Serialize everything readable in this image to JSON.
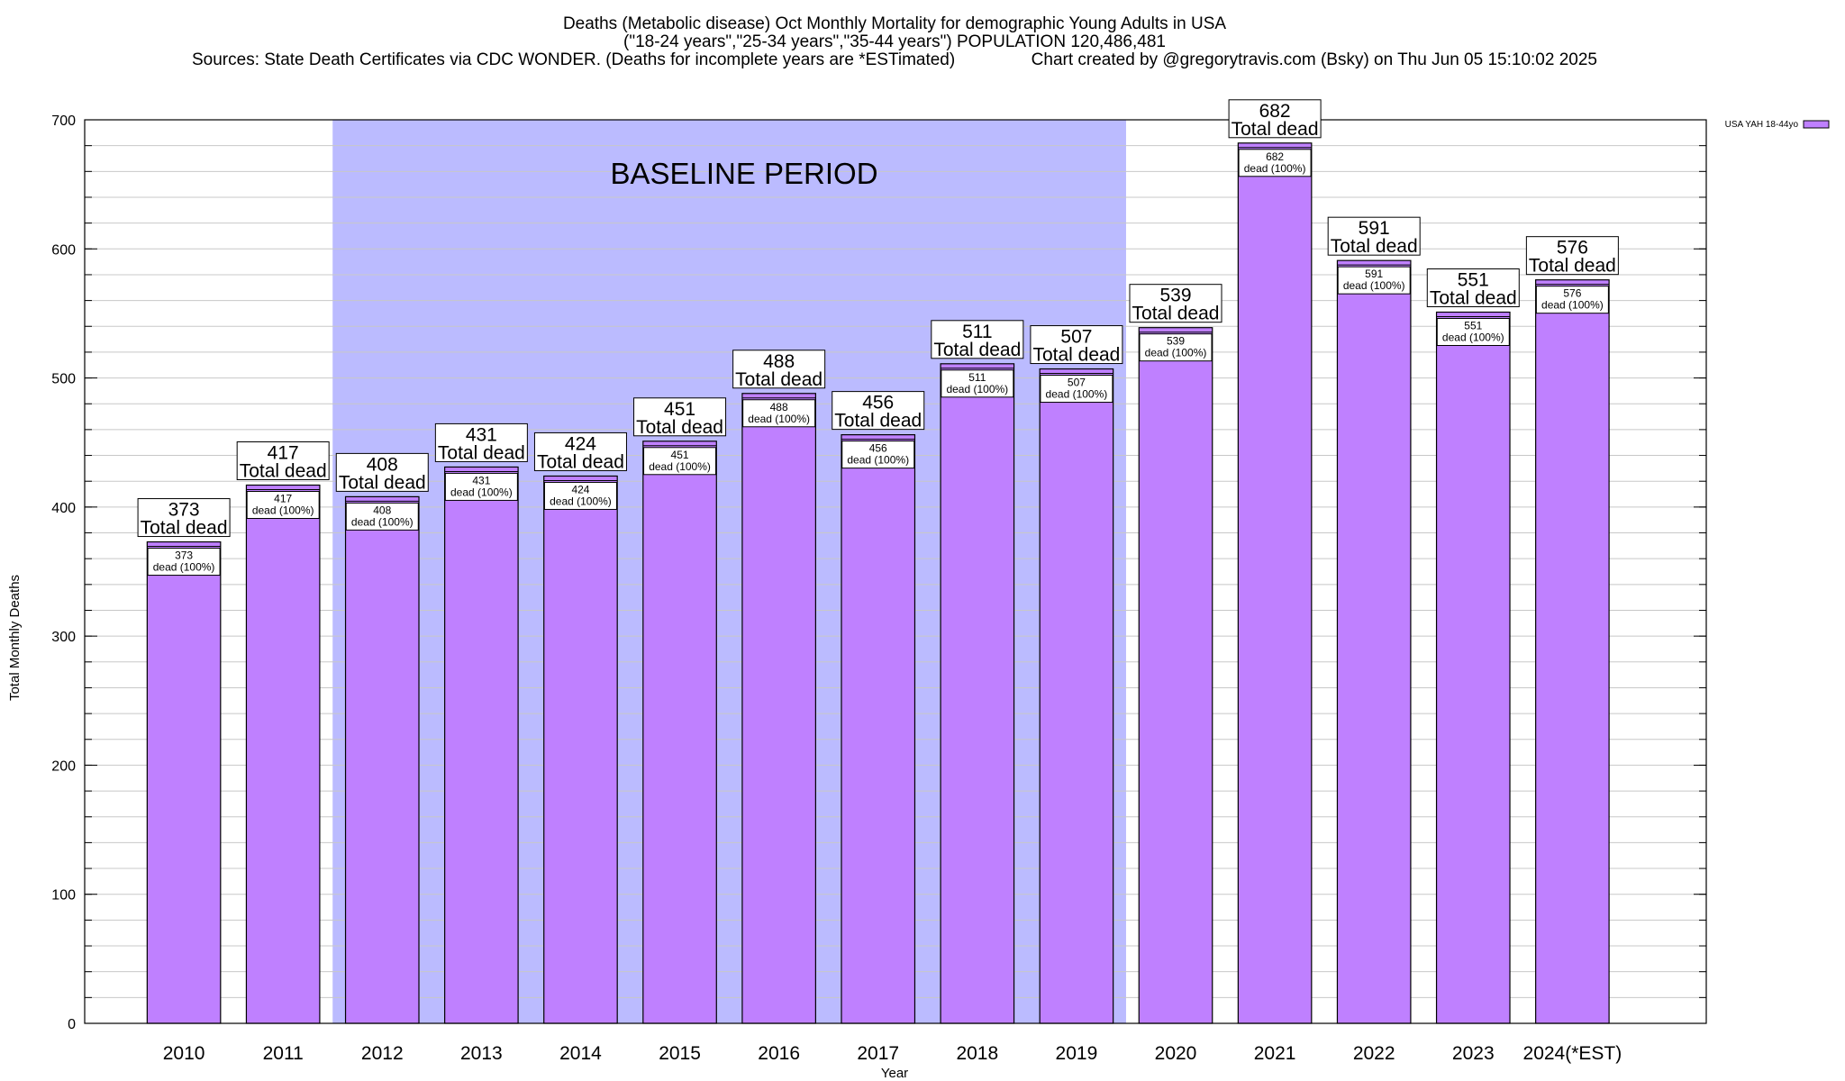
{
  "chart_data": {
    "type": "bar",
    "title_lines": [
      "Deaths (Metabolic disease) Oct Monthly Mortality for demographic Young Adults in USA",
      "(\"18-24 years\",\"25-34 years\",\"35-44 years\") POPULATION 120,486,481",
      "Sources: State Death Certificates via CDC WONDER. (Deaths for incomplete years are *ESTimated)                Chart created by @gregorytravis.com (Bsky) on Thu Jun 05 15:10:02 2025"
    ],
    "xlabel": "Year",
    "ylabel": "Total Monthly Deaths",
    "ylim": [
      0,
      700
    ],
    "yticks": [
      0,
      100,
      200,
      300,
      400,
      500,
      600,
      700
    ],
    "grid": true,
    "legend": {
      "position": "top-right",
      "entries": [
        {
          "label": "USA YAH 18-44yo",
          "color": "#bf80ff"
        }
      ]
    },
    "categories": [
      "2010",
      "2011",
      "2012",
      "2013",
      "2014",
      "2015",
      "2016",
      "2017",
      "2018",
      "2019",
      "2020",
      "2021",
      "2022",
      "2023",
      "2024(*EST)"
    ],
    "series": [
      {
        "name": "USA YAH 18-44yo",
        "values": [
          373,
          417,
          408,
          431,
          424,
          451,
          488,
          456,
          511,
          507,
          539,
          682,
          591,
          551,
          576
        ]
      }
    ],
    "top_label_suffix": "Total dead",
    "inner_label_suffix": "dead (100%)",
    "baseline_period": {
      "label": "BASELINE PERIOD",
      "from": "2012",
      "to": "2019",
      "color": "#bbbbff"
    },
    "colors": {
      "bar": "#bf80ff",
      "bar_stroke": "#000000",
      "grid": "#c8c8c8"
    }
  }
}
